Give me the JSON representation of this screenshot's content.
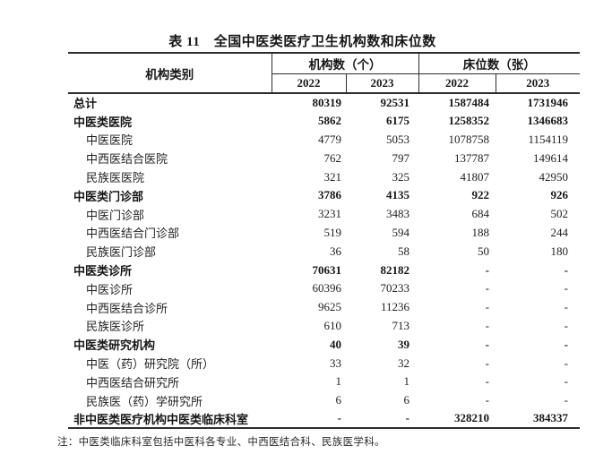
{
  "title": "表 11　全国中医类医疗卫生机构数和床位数",
  "header": {
    "category_label": "机构类别",
    "group1_label": "机构数（个）",
    "group2_label": "床位数（张）",
    "years": [
      "2022",
      "2023",
      "2022",
      "2023"
    ]
  },
  "rows": [
    {
      "label": "总计",
      "bold": true,
      "indent": false,
      "values": [
        "80319",
        "92531",
        "1587484",
        "1731946"
      ]
    },
    {
      "label": "中医类医院",
      "bold": true,
      "indent": false,
      "values": [
        "5862",
        "6175",
        "1258352",
        "1346683"
      ]
    },
    {
      "label": "中医医院",
      "bold": false,
      "indent": true,
      "values": [
        "4779",
        "5053",
        "1078758",
        "1154119"
      ]
    },
    {
      "label": "中西医结合医院",
      "bold": false,
      "indent": true,
      "values": [
        "762",
        "797",
        "137787",
        "149614"
      ]
    },
    {
      "label": "民族医医院",
      "bold": false,
      "indent": true,
      "values": [
        "321",
        "325",
        "41807",
        "42950"
      ]
    },
    {
      "label": "中医类门诊部",
      "bold": true,
      "indent": false,
      "values": [
        "3786",
        "4135",
        "922",
        "926"
      ]
    },
    {
      "label": "中医门诊部",
      "bold": false,
      "indent": true,
      "values": [
        "3231",
        "3483",
        "684",
        "502"
      ]
    },
    {
      "label": "中西医结合门诊部",
      "bold": false,
      "indent": true,
      "values": [
        "519",
        "594",
        "188",
        "244"
      ]
    },
    {
      "label": "民族医门诊部",
      "bold": false,
      "indent": true,
      "values": [
        "36",
        "58",
        "50",
        "180"
      ]
    },
    {
      "label": "中医类诊所",
      "bold": true,
      "indent": false,
      "values": [
        "70631",
        "82182",
        "-",
        "-"
      ]
    },
    {
      "label": "中医诊所",
      "bold": false,
      "indent": true,
      "values": [
        "60396",
        "70233",
        "-",
        "-"
      ]
    },
    {
      "label": "中西医结合诊所",
      "bold": false,
      "indent": true,
      "values": [
        "9625",
        "11236",
        "-",
        "-"
      ]
    },
    {
      "label": "民族医诊所",
      "bold": false,
      "indent": true,
      "values": [
        "610",
        "713",
        "-",
        "-"
      ]
    },
    {
      "label": "中医类研究机构",
      "bold": true,
      "indent": false,
      "values": [
        "40",
        "39",
        "-",
        "-"
      ]
    },
    {
      "label": "中医（药）研究院（所）",
      "bold": false,
      "indent": true,
      "values": [
        "33",
        "32",
        "-",
        "-"
      ]
    },
    {
      "label": "中西医结合研究所",
      "bold": false,
      "indent": true,
      "values": [
        "1",
        "1",
        "-",
        "-"
      ]
    },
    {
      "label": "民族医（药）学研究所",
      "bold": false,
      "indent": true,
      "values": [
        "6",
        "6",
        "-",
        "-"
      ]
    },
    {
      "label": "非中医类医疗机构中医类临床科室",
      "bold": true,
      "indent": false,
      "values": [
        "-",
        "-",
        "328210",
        "384337"
      ]
    }
  ],
  "note": "注：中医类临床科室包括中医科各专业、中西医结合科、民族医学科。"
}
